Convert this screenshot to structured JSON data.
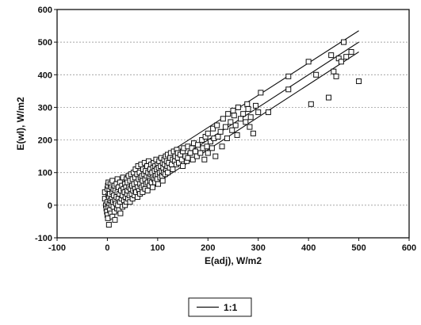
{
  "chart_data": {
    "type": "scatter",
    "xlabel": "E(adj), W/m2",
    "ylabel": "E(wl), W/m2",
    "xlim": [
      -100,
      600
    ],
    "ylim": [
      -100,
      600
    ],
    "x_ticks": [
      "-100",
      "0",
      "100",
      "200",
      "300",
      "400",
      "500",
      "600"
    ],
    "y_ticks": [
      "-100",
      "0",
      "100",
      "200",
      "300",
      "400",
      "500",
      "600"
    ],
    "grid": "horizontal dashed",
    "legend_position": "bottom-center",
    "legend_entries": [
      "1:1"
    ],
    "reference_lines": [
      {
        "label": "1:1",
        "x": [
          0,
          500
        ],
        "y": [
          0,
          500
        ]
      },
      {
        "x": [
          0,
          500
        ],
        "y": [
          40,
          535
        ]
      },
      {
        "x": [
          0,
          500
        ],
        "y": [
          -30,
          470
        ]
      }
    ],
    "series": [
      {
        "marker": "open-square",
        "points": [
          [
            -5,
            40
          ],
          [
            -5,
            20
          ],
          [
            -3,
            0
          ],
          [
            -2,
            -10
          ],
          [
            -1,
            -20
          ],
          [
            0,
            50
          ],
          [
            0,
            10
          ],
          [
            0,
            -30
          ],
          [
            1,
            60
          ],
          [
            1,
            -40
          ],
          [
            2,
            70
          ],
          [
            2,
            30
          ],
          [
            2,
            -5
          ],
          [
            3,
            25
          ],
          [
            3,
            -60
          ],
          [
            4,
            45
          ],
          [
            4,
            5
          ],
          [
            5,
            35
          ],
          [
            5,
            -15
          ],
          [
            6,
            65
          ],
          [
            6,
            15
          ],
          [
            7,
            -25
          ],
          [
            8,
            55
          ],
          [
            8,
            0
          ],
          [
            9,
            20
          ],
          [
            10,
            75
          ],
          [
            10,
            40
          ],
          [
            10,
            -35
          ],
          [
            11,
            10
          ],
          [
            12,
            50
          ],
          [
            12,
            -5
          ],
          [
            13,
            30
          ],
          [
            14,
            60
          ],
          [
            14,
            -20
          ],
          [
            15,
            15
          ],
          [
            15,
            -45
          ],
          [
            16,
            45
          ],
          [
            17,
            5
          ],
          [
            18,
            65
          ],
          [
            18,
            25
          ],
          [
            19,
            -10
          ],
          [
            20,
            40
          ],
          [
            20,
            80
          ],
          [
            21,
            0
          ],
          [
            22,
            20
          ],
          [
            22,
            55
          ],
          [
            23,
            -15
          ],
          [
            24,
            35
          ],
          [
            25,
            70
          ],
          [
            25,
            10
          ],
          [
            26,
            -25
          ],
          [
            27,
            45
          ],
          [
            28,
            20
          ],
          [
            29,
            60
          ],
          [
            30,
            30
          ],
          [
            30,
            -5
          ],
          [
            31,
            85
          ],
          [
            32,
            50
          ],
          [
            33,
            15
          ],
          [
            34,
            40
          ],
          [
            35,
            65
          ],
          [
            35,
            0
          ],
          [
            36,
            25
          ],
          [
            37,
            55
          ],
          [
            38,
            80
          ],
          [
            38,
            10
          ],
          [
            39,
            35
          ],
          [
            40,
            70
          ],
          [
            40,
            45
          ],
          [
            41,
            20
          ],
          [
            42,
            90
          ],
          [
            43,
            55
          ],
          [
            44,
            30
          ],
          [
            45,
            75
          ],
          [
            45,
            10
          ],
          [
            46,
            50
          ],
          [
            47,
            95
          ],
          [
            48,
            35
          ],
          [
            49,
            60
          ],
          [
            50,
            80
          ],
          [
            50,
            20
          ],
          [
            51,
            45
          ],
          [
            52,
            100
          ],
          [
            53,
            65
          ],
          [
            54,
            30
          ],
          [
            55,
            85
          ],
          [
            55,
            50
          ],
          [
            56,
            110
          ],
          [
            57,
            40
          ],
          [
            58,
            70
          ],
          [
            59,
            95
          ],
          [
            60,
            55
          ],
          [
            60,
            25
          ],
          [
            61,
            120
          ],
          [
            62,
            80
          ],
          [
            63,
            45
          ],
          [
            64,
            100
          ],
          [
            65,
            65
          ],
          [
            65,
            35
          ],
          [
            66,
            85
          ],
          [
            67,
            125
          ],
          [
            68,
            55
          ],
          [
            69,
            90
          ],
          [
            70,
            75
          ],
          [
            70,
            40
          ],
          [
            71,
            110
          ],
          [
            72,
            60
          ],
          [
            73,
            95
          ],
          [
            74,
            130
          ],
          [
            75,
            80
          ],
          [
            75,
            50
          ],
          [
            76,
            105
          ],
          [
            77,
            65
          ],
          [
            78,
            90
          ],
          [
            79,
            120
          ],
          [
            80,
            70
          ],
          [
            80,
            45
          ],
          [
            81,
            100
          ],
          [
            82,
            135
          ],
          [
            83,
            85
          ],
          [
            84,
            60
          ],
          [
            85,
            110
          ],
          [
            85,
            75
          ],
          [
            86,
            95
          ],
          [
            87,
            125
          ],
          [
            88,
            70
          ],
          [
            89,
            100
          ],
          [
            90,
            85
          ],
          [
            90,
            55
          ],
          [
            91,
            115
          ],
          [
            92,
            130
          ],
          [
            93,
            80
          ],
          [
            94,
            105
          ],
          [
            95,
            120
          ],
          [
            95,
            70
          ],
          [
            96,
            90
          ],
          [
            97,
            140
          ],
          [
            98,
            110
          ],
          [
            99,
            80
          ],
          [
            100,
            125
          ],
          [
            100,
            95
          ],
          [
            101,
            65
          ],
          [
            102,
            115
          ],
          [
            103,
            135
          ],
          [
            104,
            100
          ],
          [
            105,
            85
          ],
          [
            106,
            120
          ],
          [
            107,
            145
          ],
          [
            108,
            105
          ],
          [
            109,
            90
          ],
          [
            110,
            130
          ],
          [
            110,
            75
          ],
          [
            111,
            115
          ],
          [
            112,
            100
          ],
          [
            113,
            140
          ],
          [
            114,
            125
          ],
          [
            115,
            95
          ],
          [
            116,
            150
          ],
          [
            117,
            110
          ],
          [
            118,
            135
          ],
          [
            119,
            120
          ],
          [
            120,
            100
          ],
          [
            120,
            155
          ],
          [
            122,
            130
          ],
          [
            124,
            115
          ],
          [
            125,
            145
          ],
          [
            126,
            160
          ],
          [
            128,
            125
          ],
          [
            130,
            140
          ],
          [
            130,
            110
          ],
          [
            132,
            165
          ],
          [
            134,
            135
          ],
          [
            135,
            150
          ],
          [
            137,
            125
          ],
          [
            138,
            170
          ],
          [
            140,
            145
          ],
          [
            140,
            160
          ],
          [
            142,
            130
          ],
          [
            145,
            155
          ],
          [
            148,
            140
          ],
          [
            150,
            165
          ],
          [
            150,
            120
          ],
          [
            152,
            175
          ],
          [
            155,
            150
          ],
          [
            158,
            135
          ],
          [
            160,
            180
          ],
          [
            160,
            145
          ],
          [
            165,
            160
          ],
          [
            168,
            175
          ],
          [
            170,
            140
          ],
          [
            172,
            190
          ],
          [
            175,
            165
          ],
          [
            178,
            150
          ],
          [
            180,
            185
          ],
          [
            185,
            160
          ],
          [
            188,
            200
          ],
          [
            190,
            175
          ],
          [
            193,
            140
          ],
          [
            195,
            210
          ],
          [
            198,
            180
          ],
          [
            200,
            160
          ],
          [
            200,
            220
          ],
          [
            205,
            195
          ],
          [
            208,
            175
          ],
          [
            210,
            235
          ],
          [
            212,
            205
          ],
          [
            215,
            150
          ],
          [
            218,
            245
          ],
          [
            220,
            210
          ],
          [
            225,
            225
          ],
          [
            228,
            180
          ],
          [
            230,
            265
          ],
          [
            235,
            240
          ],
          [
            238,
            205
          ],
          [
            240,
            280
          ],
          [
            245,
            255
          ],
          [
            248,
            230
          ],
          [
            250,
            290
          ],
          [
            252,
            275
          ],
          [
            255,
            245
          ],
          [
            258,
            215
          ],
          [
            260,
            300
          ],
          [
            265,
            265
          ],
          [
            270,
            280
          ],
          [
            275,
            255
          ],
          [
            278,
            310
          ],
          [
            280,
            295
          ],
          [
            283,
            240
          ],
          [
            285,
            270
          ],
          [
            290,
            220
          ],
          [
            295,
            305
          ],
          [
            300,
            285
          ],
          [
            305,
            345
          ],
          [
            320,
            285
          ],
          [
            360,
            355
          ],
          [
            360,
            395
          ],
          [
            400,
            440
          ],
          [
            405,
            310
          ],
          [
            415,
            400
          ],
          [
            440,
            330
          ],
          [
            445,
            460
          ],
          [
            450,
            410
          ],
          [
            455,
            395
          ],
          [
            460,
            450
          ],
          [
            465,
            440
          ],
          [
            470,
            500
          ],
          [
            475,
            455
          ],
          [
            485,
            470
          ],
          [
            500,
            380
          ]
        ]
      }
    ]
  }
}
